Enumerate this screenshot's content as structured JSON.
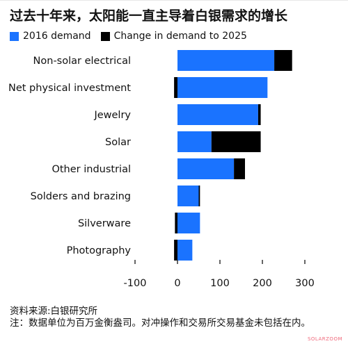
{
  "title": "过去十年来，太阳能一直主导着白银需求的增长",
  "legend": {
    "base_label": "2016 demand",
    "change_label": "Change in demand to 2025"
  },
  "colors": {
    "base": "#1a73ff",
    "change": "#000000",
    "axis": "#333333"
  },
  "chart_data": {
    "type": "bar",
    "orientation": "horizontal-stacked",
    "categories": [
      "Non-solar electrical",
      "Net physical investment",
      "Jewelry",
      "Solar",
      "Other industrial",
      "Solders and brazing",
      "Silverware",
      "Photography"
    ],
    "series": [
      {
        "name": "2016 demand",
        "values": [
          228,
          212,
          190,
          80,
          133,
          50,
          53,
          35
        ]
      },
      {
        "name": "Change in demand to 2025",
        "values": [
          42,
          -8,
          6,
          116,
          26,
          3,
          -6,
          -8
        ]
      }
    ],
    "xlim": [
      -100,
      300
    ],
    "xticks": [
      -100,
      0,
      100,
      200,
      300
    ],
    "xtick_labels": [
      "-100",
      "0",
      "100",
      "200",
      "300"
    ],
    "grid": false,
    "legend_position": "top-left"
  },
  "source": {
    "line1": "资料来源:白银研究所",
    "line2": "注：数据单位为百万金衡盎司。对冲操作和交易所交易基金未包括在内。"
  },
  "watermark": "SOLARZOOM"
}
